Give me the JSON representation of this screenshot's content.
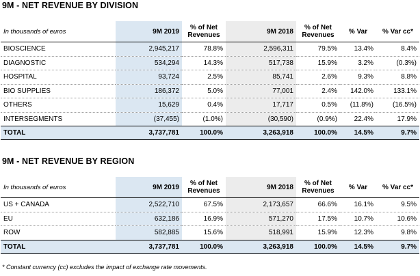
{
  "division": {
    "title": "9M - NET REVENUE BY DIVISION",
    "header": {
      "label": "In thousands of euros",
      "col_2019": "9M 2019",
      "pct_2019": "% of Net Revenues",
      "col_2018": "9M 2018",
      "pct_2018": "% of Net Revenues",
      "var": "% Var",
      "var_cc": "% Var cc*"
    },
    "rows": [
      {
        "name": "BIOSCIENCE",
        "v2019": "2,945,217",
        "p2019": "78.8%",
        "v2018": "2,596,311",
        "p2018": "79.5%",
        "var": "13.4%",
        "varcc": "8.4%"
      },
      {
        "name": "DIAGNOSTIC",
        "v2019": "534,294",
        "p2019": "14.3%",
        "v2018": "517,738",
        "p2018": "15.9%",
        "var": "3.2%",
        "varcc": "(0.3%)"
      },
      {
        "name": "HOSPITAL",
        "v2019": "93,724",
        "p2019": "2.5%",
        "v2018": "85,741",
        "p2018": "2.6%",
        "var": "9.3%",
        "varcc": "8.8%"
      },
      {
        "name": "BIO SUPPLIES",
        "v2019": "186,372",
        "p2019": "5.0%",
        "v2018": "77,001",
        "p2018": "2.4%",
        "var": "142.0%",
        "varcc": "133.1%"
      },
      {
        "name": "OTHERS",
        "v2019": "15,629",
        "p2019": "0.4%",
        "v2018": "17,717",
        "p2018": "0.5%",
        "var": "(11.8%)",
        "varcc": "(16.5%)"
      },
      {
        "name": "INTERSEGMENTS",
        "v2019": "(37,455)",
        "p2019": "(1.0%)",
        "v2018": "(30,590)",
        "p2018": "(0.9%)",
        "var": "22.4%",
        "varcc": "17.9%"
      }
    ],
    "total": {
      "name": "TOTAL",
      "v2019": "3,737,781",
      "p2019": "100.0%",
      "v2018": "3,263,918",
      "p2018": "100.0%",
      "var": "14.5%",
      "varcc": "9.7%"
    }
  },
  "region": {
    "title": "9M - NET REVENUE BY REGION",
    "header": {
      "label": "In thousands of euros",
      "col_2019": "9M 2019",
      "pct_2019": "% of Net Revenues",
      "col_2018": "9M 2018",
      "pct_2018": "% of Net Revenues",
      "var": "% Var",
      "var_cc": "% Var cc*"
    },
    "rows": [
      {
        "name": "US + CANADA",
        "v2019": "2,522,710",
        "p2019": "67.5%",
        "v2018": "2,173,657",
        "p2018": "66.6%",
        "var": "16.1%",
        "varcc": "9.5%"
      },
      {
        "name": "EU",
        "v2019": "632,186",
        "p2019": "16.9%",
        "v2018": "571,270",
        "p2018": "17.5%",
        "var": "10.7%",
        "varcc": "10.6%"
      },
      {
        "name": "ROW",
        "v2019": "582,885",
        "p2019": "15.6%",
        "v2018": "518,991",
        "p2018": "15.9%",
        "var": "12.3%",
        "varcc": "9.8%"
      }
    ],
    "total": {
      "name": "TOTAL",
      "v2019": "3,737,781",
      "p2019": "100.0%",
      "v2018": "3,263,918",
      "p2018": "100.0%",
      "var": "14.5%",
      "varcc": "9.7%"
    }
  },
  "footnote": "* Constant currency (cc) excludes the impact of exchange rate movements."
}
